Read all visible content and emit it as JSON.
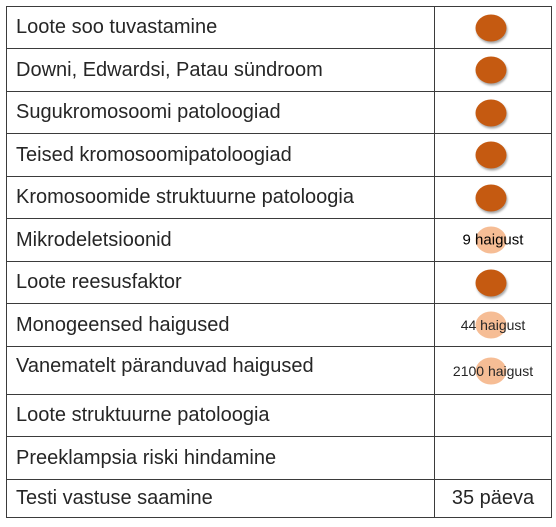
{
  "rows": [
    {
      "label": "Loote soo tuvastamine",
      "mark": "full",
      "note": ""
    },
    {
      "label": "Downi, Edwardsi, Patau sündroom",
      "mark": "full",
      "note": ""
    },
    {
      "label": "Sugukromosoomi patoloogiad",
      "mark": "full",
      "note": ""
    },
    {
      "label": "Teised kromosoomipatoloogiad",
      "mark": "full",
      "note": ""
    },
    {
      "label": "Kromosoomide struktuurne patoloogia",
      "mark": "full",
      "note": ""
    },
    {
      "label": "Mikrodeletsioonid",
      "mark": "light",
      "note": "9 haigust"
    },
    {
      "label": "Loote reesusfaktor",
      "mark": "full",
      "note": ""
    },
    {
      "label": "Monogeensed haigused",
      "mark": "light",
      "note": "44 haigust"
    },
    {
      "label": "Vanematelt päranduvad haigused",
      "mark": "light",
      "note": "2100 haigust"
    },
    {
      "label": "Loote struktuurne patoloogia",
      "mark": "none",
      "note": ""
    },
    {
      "label": "Preeklampsia riski hindamine",
      "mark": "none",
      "note": ""
    },
    {
      "label": "Testi vastuse saamine",
      "mark": "text",
      "note": "35 päeva"
    }
  ],
  "colors": {
    "full_dot": "#c55a11",
    "light_dot": "#f4b183",
    "border": "#3b3b3b",
    "text": "#262626"
  }
}
